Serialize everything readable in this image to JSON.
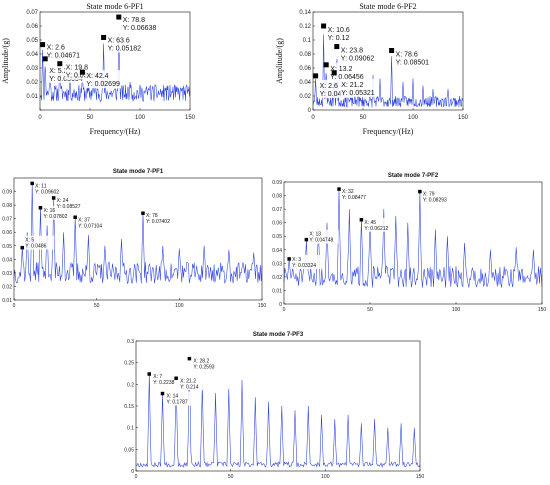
{
  "chart_data": [
    {
      "id": "pf1_6",
      "type": "line",
      "title": "State mode 6-PF1",
      "xlabel": "Frequency/(Hz)",
      "ylabel": "Amplitude/(g)",
      "xlim": [
        0,
        150
      ],
      "ylim": [
        0,
        0.07
      ],
      "xticks": [
        0,
        50,
        100,
        150
      ],
      "yticks": [
        0,
        0.01,
        0.02,
        0.03,
        0.04,
        0.05,
        0.06,
        0.07
      ],
      "ytick_labels": [
        "",
        "0.01",
        "0.02",
        "0.03",
        "0.04",
        "0.05",
        "0.06",
        "0.07"
      ],
      "base": 0.012,
      "noise": 0.006,
      "seed": 11,
      "peaks": [
        [
          2.6,
          0.04671
        ],
        [
          5.2,
          0.03654
        ],
        [
          19.8,
          0.03307
        ],
        [
          42.4,
          0.02699
        ],
        [
          63.6,
          0.05182
        ],
        [
          78.8,
          0.06638
        ],
        [
          10,
          0.026
        ],
        [
          30,
          0.024
        ],
        [
          53,
          0.022
        ],
        [
          90,
          0.02
        ],
        [
          100,
          0.018
        ],
        [
          110,
          0.017
        ],
        [
          125,
          0.016
        ],
        [
          142,
          0.015
        ]
      ],
      "datatips": [
        {
          "x_label": "X: 2.6",
          "y_label": "Y: 0.04671",
          "x": 2.6,
          "y": 0.04671
        },
        {
          "x_label": "X: 5.2",
          "y_label": "Y: 0.03654",
          "x": 5.2,
          "y": 0.03654
        },
        {
          "x_label": "X: 19.8",
          "y_label": "Y: 0.03307",
          "x": 19.8,
          "y": 0.03307
        },
        {
          "x_label": "X: 42.4",
          "y_label": "Y: 0.02699",
          "x": 42.4,
          "y": 0.02699
        },
        {
          "x_label": "X: 63.6",
          "y_label": "Y: 0.05182",
          "x": 63.6,
          "y": 0.05182
        },
        {
          "x_label": "X: 78.8",
          "y_label": "Y: 0.06638",
          "x": 78.8,
          "y": 0.06638
        }
      ]
    },
    {
      "id": "pf2_6",
      "type": "line",
      "title": "State mode 6-PF2",
      "xlabel": "Frequency/(Hz)",
      "ylabel": "Amplitude/(g)",
      "xlim": [
        0,
        150
      ],
      "ylim": [
        0,
        0.14
      ],
      "xticks": [
        0,
        50,
        100,
        150
      ],
      "yticks": [
        0,
        0.02,
        0.04,
        0.06,
        0.08,
        0.1,
        0.12,
        0.14
      ],
      "ytick_labels": [
        "0",
        "0.02",
        "0.04",
        "0.06",
        "0.08",
        "0.1",
        "0.12",
        "0.14"
      ],
      "base": 0.012,
      "noise": 0.008,
      "seed": 23,
      "peaks": [
        [
          2.6,
          0.04876
        ],
        [
          10.6,
          0.12
        ],
        [
          13.2,
          0.06456
        ],
        [
          21.2,
          0.05321
        ],
        [
          23.8,
          0.09062
        ],
        [
          78.6,
          0.08501
        ],
        [
          35,
          0.045
        ],
        [
          45,
          0.04
        ],
        [
          60,
          0.05
        ],
        [
          67,
          0.045
        ],
        [
          90,
          0.04
        ],
        [
          100,
          0.045
        ],
        [
          110,
          0.035
        ],
        [
          120,
          0.03
        ],
        [
          135,
          0.03
        ]
      ],
      "datatips": [
        {
          "x_label": "X: 10.6",
          "y_label": "Y: 0.12",
          "x": 10.6,
          "y": 0.12
        },
        {
          "x_label": "X: 23.8",
          "y_label": "Y: 0.09062",
          "x": 23.8,
          "y": 0.09062
        },
        {
          "x_label": "X: 13.2",
          "y_label": "Y: 0.06456",
          "x": 13.2,
          "y": 0.06456
        },
        {
          "x_label": "X: 2.6",
          "y_label": "Y: 0.04876",
          "x": 2.6,
          "y": 0.04876
        },
        {
          "x_label": "X: 21.2",
          "y_label": "Y: 0.05321",
          "x": 21.2,
          "y": 0.05321
        },
        {
          "x_label": "X: 78.6",
          "y_label": "Y: 0.08501",
          "x": 78.6,
          "y": 0.08501
        }
      ]
    },
    {
      "id": "pf1_7",
      "type": "line",
      "title": "State mode 7-PF1",
      "xlabel": "",
      "ylabel": "",
      "xlim": [
        0,
        150
      ],
      "ylim": [
        0.01,
        0.1
      ],
      "xticks": [
        0,
        50,
        100,
        150
      ],
      "yticks": [
        0.01,
        0.02,
        0.03,
        0.04,
        0.05,
        0.06,
        0.07,
        0.08,
        0.09
      ],
      "ytick_labels": [
        "0.01",
        "0.02",
        "0.03",
        "0.04",
        "0.05",
        "0.06",
        "0.07",
        "0.08",
        "0.09"
      ],
      "base": 0.03,
      "noise": 0.008,
      "seed": 37,
      "peaks": [
        [
          5,
          0.0486
        ],
        [
          11,
          0.09602
        ],
        [
          16,
          0.07802
        ],
        [
          24,
          0.08527
        ],
        [
          37,
          0.07104
        ],
        [
          78,
          0.07402
        ],
        [
          8,
          0.06
        ],
        [
          20,
          0.065
        ],
        [
          30,
          0.06
        ],
        [
          45,
          0.058
        ],
        [
          55,
          0.05
        ],
        [
          65,
          0.055
        ],
        [
          90,
          0.05
        ],
        [
          100,
          0.048
        ],
        [
          115,
          0.05
        ],
        [
          130,
          0.047
        ],
        [
          145,
          0.045
        ]
      ],
      "datatips": [
        {
          "x_label": "X: 5",
          "y_label": "Y: 0.0486",
          "x": 5,
          "y": 0.0486
        },
        {
          "x_label": "X: 11",
          "y_label": "Y: 0.09602",
          "x": 11,
          "y": 0.09602
        },
        {
          "x_label": "X: 16",
          "y_label": "Y: 0.07802",
          "x": 16,
          "y": 0.07802
        },
        {
          "x_label": "X: 24",
          "y_label": "Y: 0.08527",
          "x": 24,
          "y": 0.08527
        },
        {
          "x_label": "X: 37",
          "y_label": "Y: 0.07104",
          "x": 37,
          "y": 0.07104
        },
        {
          "x_label": "X: 78",
          "y_label": "Y: 0.07402",
          "x": 78,
          "y": 0.07402
        }
      ]
    },
    {
      "id": "pf2_7",
      "type": "line",
      "title": "State mode 7-PF2",
      "xlabel": "",
      "ylabel": "",
      "xlim": [
        0,
        150
      ],
      "ylim": [
        0,
        0.09
      ],
      "xticks": [
        0,
        50,
        100,
        150
      ],
      "yticks": [
        0,
        0.01,
        0.02,
        0.03,
        0.04,
        0.05,
        0.06,
        0.07,
        0.08,
        0.09
      ],
      "ytick_labels": [
        "0",
        "0.01",
        "0.02",
        "0.03",
        "0.04",
        "0.05",
        "0.06",
        "0.07",
        "0.08",
        "0.09"
      ],
      "base": 0.02,
      "noise": 0.008,
      "seed": 51,
      "peaks": [
        [
          3,
          0.03324
        ],
        [
          13,
          0.04748
        ],
        [
          32,
          0.08477
        ],
        [
          45,
          0.06212
        ],
        [
          79,
          0.08293
        ],
        [
          20,
          0.055
        ],
        [
          25,
          0.06
        ],
        [
          38,
          0.07
        ],
        [
          50,
          0.06
        ],
        [
          58,
          0.07
        ],
        [
          65,
          0.065
        ],
        [
          72,
          0.06
        ],
        [
          88,
          0.055
        ],
        [
          95,
          0.05
        ],
        [
          105,
          0.045
        ],
        [
          120,
          0.04
        ],
        [
          135,
          0.042
        ],
        [
          145,
          0.04
        ]
      ],
      "datatips": [
        {
          "x_label": "X: 3",
          "y_label": "Y: 0.03324",
          "x": 3,
          "y": 0.03324
        },
        {
          "x_label": "X: 13",
          "y_label": "Y: 0.04748",
          "x": 13,
          "y": 0.04748
        },
        {
          "x_label": "X: 32",
          "y_label": "Y: 0.08477",
          "x": 32,
          "y": 0.08477
        },
        {
          "x_label": "X: 45",
          "y_label": "Y: 0.06212",
          "x": 45,
          "y": 0.06212
        },
        {
          "x_label": "X: 79",
          "y_label": "Y: 0.08293",
          "x": 79,
          "y": 0.08293
        }
      ]
    },
    {
      "id": "pf3_7",
      "type": "line",
      "title": "State mode 7-PF3",
      "xlabel": "",
      "ylabel": "",
      "xlim": [
        0,
        150
      ],
      "ylim": [
        0,
        0.3
      ],
      "xticks": [
        0,
        50,
        100,
        150
      ],
      "yticks": [
        0,
        0.05,
        0.1,
        0.15,
        0.2,
        0.25,
        0.3
      ],
      "ytick_labels": [
        "0",
        "0.05",
        "0.1",
        "0.15",
        "0.2",
        "0.25",
        "0.3"
      ],
      "base": 0.015,
      "noise": 0.006,
      "seed": 67,
      "peaks": [
        [
          7,
          0.2238
        ],
        [
          14,
          0.1787
        ],
        [
          21.2,
          0.214
        ],
        [
          28.2,
          0.2593
        ],
        [
          35,
          0.2
        ],
        [
          42,
          0.18
        ],
        [
          49,
          0.19
        ],
        [
          56,
          0.21
        ],
        [
          63,
          0.17
        ],
        [
          70,
          0.16
        ],
        [
          77,
          0.15
        ],
        [
          84,
          0.14
        ],
        [
          91,
          0.15
        ],
        [
          98,
          0.13
        ],
        [
          105,
          0.12
        ],
        [
          112,
          0.13
        ],
        [
          119,
          0.11
        ],
        [
          126,
          0.12
        ],
        [
          133,
          0.1
        ],
        [
          140,
          0.11
        ],
        [
          147,
          0.1
        ]
      ],
      "datatips": [
        {
          "x_label": "X: 7",
          "y_label": "Y: 0.2238",
          "x": 7,
          "y": 0.2238
        },
        {
          "x_label": "X: 14",
          "y_label": "Y: 0.1787",
          "x": 14,
          "y": 0.1787
        },
        {
          "x_label": "X: 21.2",
          "y_label": "Y: 0.214",
          "x": 21.2,
          "y": 0.214
        },
        {
          "x_label": "X: 28.2",
          "y_label": "Y: 0.2593",
          "x": 28.2,
          "y": 0.2593
        }
      ]
    }
  ],
  "colors": {
    "line": "#2a3fe0",
    "frame": "#111111",
    "marker": "#000000",
    "tip_bg": "#ffffff"
  }
}
